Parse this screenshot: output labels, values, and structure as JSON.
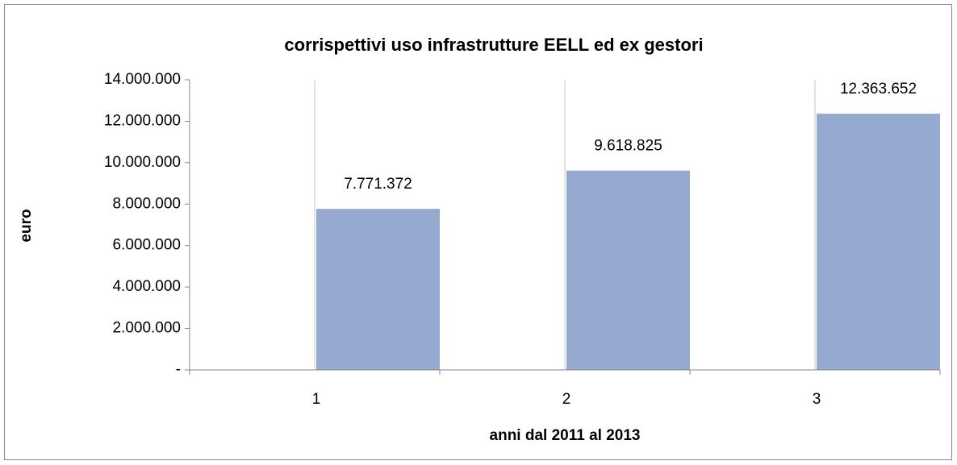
{
  "chart_data": {
    "type": "bar",
    "title": "corrispettivi uso infrastrutture EELL ed ex gestori",
    "x_label": "anni dal 2011 al 2013",
    "y_label": "euro",
    "categories": [
      "1",
      "2",
      "3"
    ],
    "values": [
      7771372,
      9618825,
      12363652
    ],
    "value_labels": [
      "7.771.372",
      "9.618.825",
      "12.363.652"
    ],
    "color": "#95a9d1",
    "ylim": [
      0,
      14000000
    ],
    "yticks": [
      {
        "value": 0,
        "label": "-"
      },
      {
        "value": 2000000,
        "label": "2.000.000"
      },
      {
        "value": 4000000,
        "label": "4.000.000"
      },
      {
        "value": 6000000,
        "label": "6.000.000"
      },
      {
        "value": 8000000,
        "label": "8.000.000"
      },
      {
        "value": 10000000,
        "label": "10.000.000"
      },
      {
        "value": 12000000,
        "label": "12.000.000"
      },
      {
        "value": 14000000,
        "label": "14.000.000"
      }
    ],
    "xgrid": true
  }
}
